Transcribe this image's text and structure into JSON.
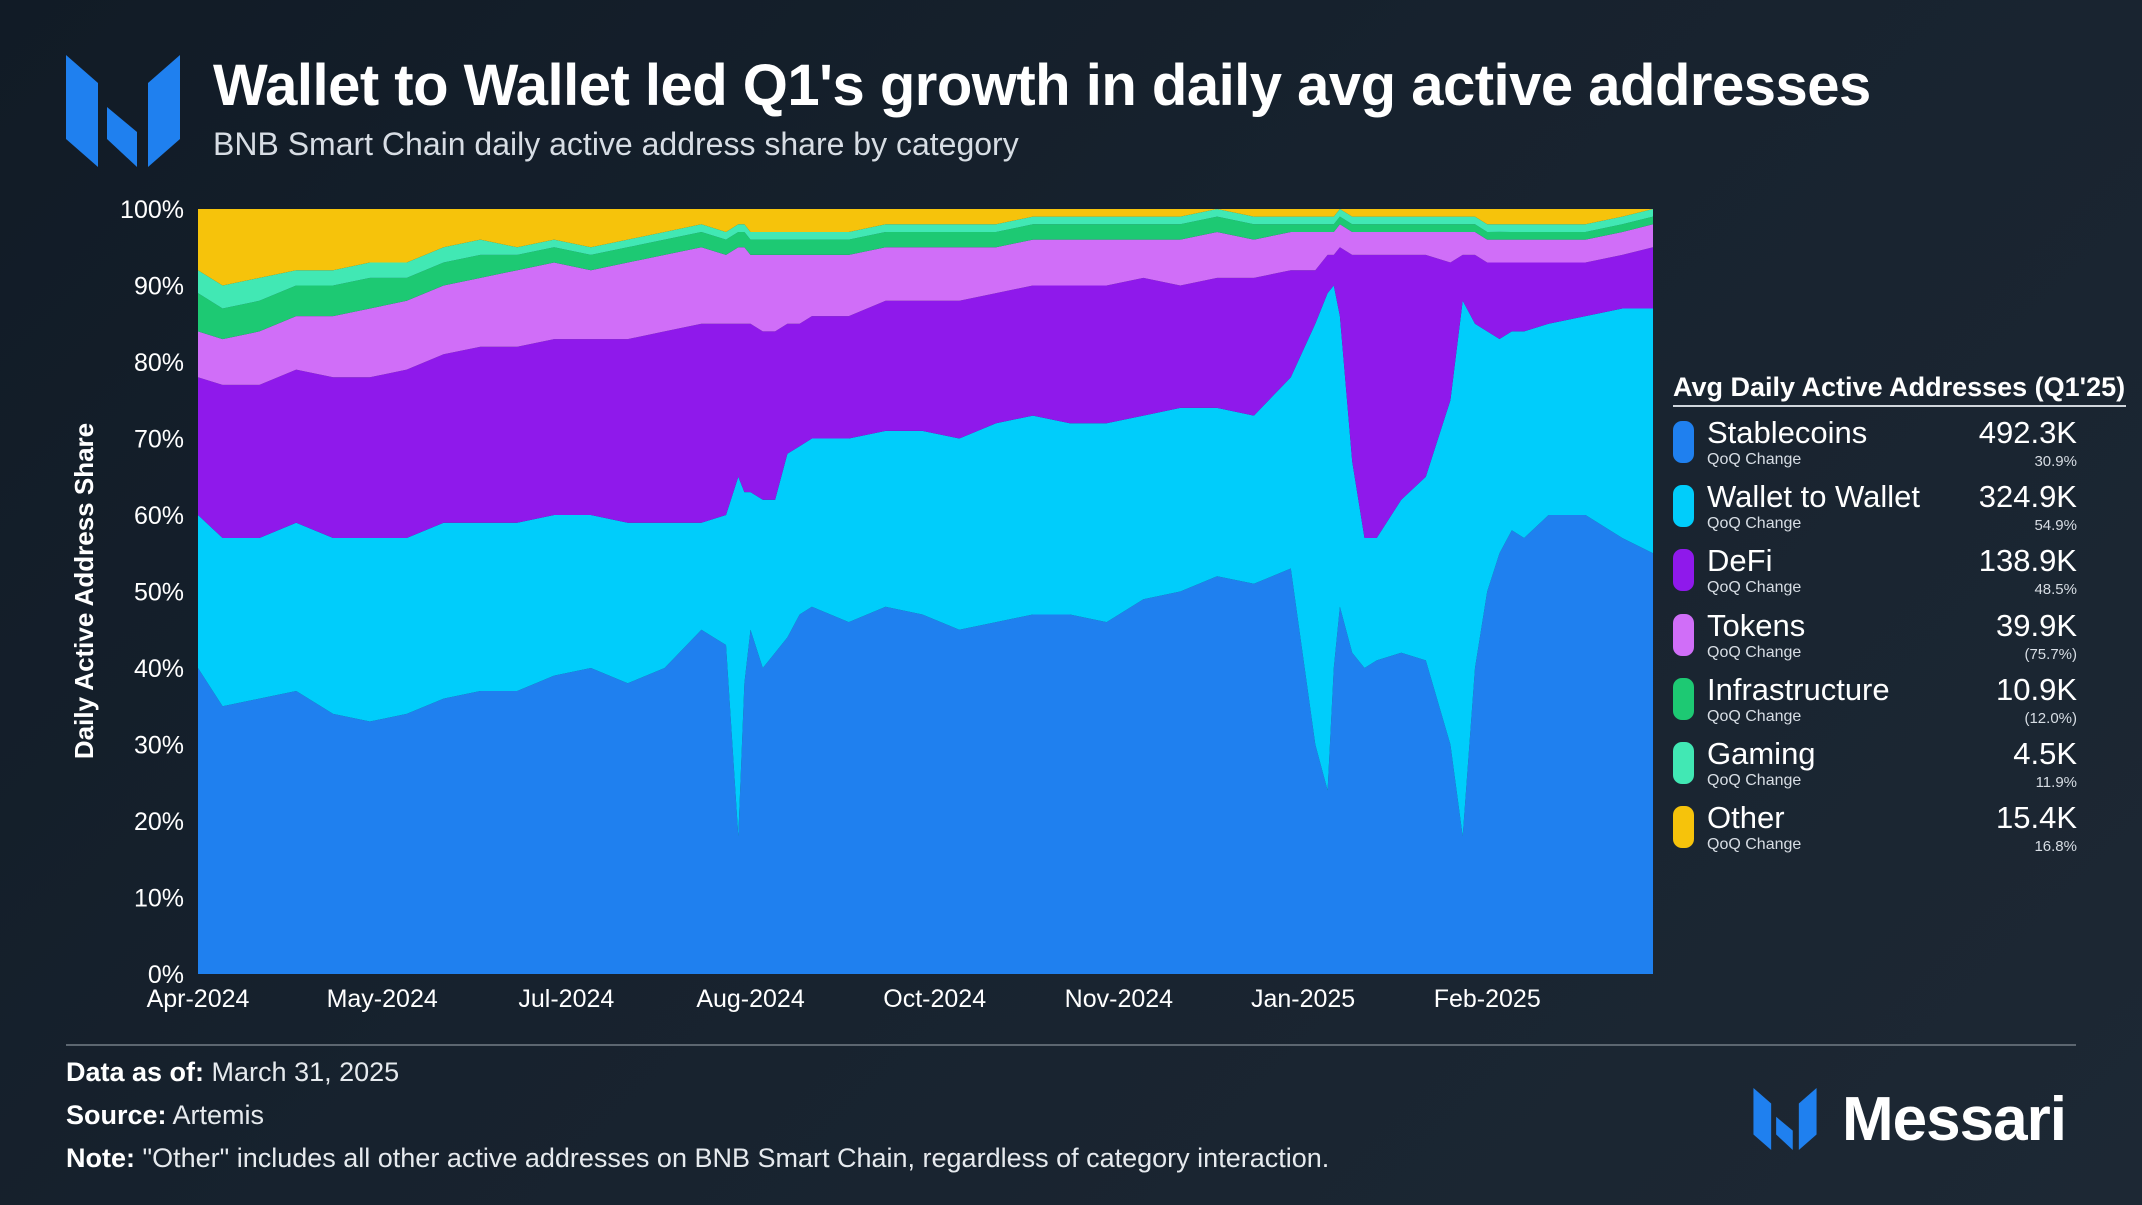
{
  "header": {
    "logo_icon": "messari-logo-icon",
    "title": "Wallet to Wallet led Q1's growth in daily avg active addresses",
    "subtitle": "BNB Smart Chain daily active address share by category"
  },
  "chart_data": {
    "type": "area",
    "stacked": true,
    "normalized": true,
    "title": "Wallet to Wallet led Q1's growth in daily avg active addresses",
    "subtitle": "BNB Smart Chain daily active address share by category",
    "xlabel": "",
    "ylabel": "Daily Active Address Share",
    "ylim": [
      0,
      100
    ],
    "y_ticks": [
      "0%",
      "10%",
      "20%",
      "30%",
      "40%",
      "50%",
      "60%",
      "70%",
      "80%",
      "90%",
      "100%"
    ],
    "x_ticks": [
      "Apr-2024",
      "May-2024",
      "Jul-2024",
      "Aug-2024",
      "Oct-2024",
      "Nov-2024",
      "Jan-2025",
      "Feb-2025"
    ],
    "x_tick_positions": [
      0,
      30,
      60,
      90,
      120,
      150,
      180,
      210
    ],
    "x_range": [
      0,
      237
    ],
    "x": [
      0,
      4,
      10,
      16,
      22,
      28,
      34,
      40,
      46,
      52,
      58,
      64,
      70,
      76,
      82,
      86,
      88,
      89,
      90,
      92,
      94,
      96,
      98,
      100,
      106,
      112,
      118,
      124,
      130,
      136,
      142,
      148,
      154,
      160,
      166,
      172,
      178,
      182,
      184,
      185,
      186,
      188,
      190,
      192,
      196,
      200,
      204,
      206,
      208,
      210,
      212,
      214,
      216,
      220,
      226,
      232,
      237
    ],
    "series": [
      {
        "name": "Stablecoins",
        "color": "#1f80ef",
        "values": [
          40,
          35,
          36,
          37,
          34,
          33,
          34,
          36,
          37,
          37,
          39,
          40,
          38,
          40,
          45,
          43,
          18,
          38,
          45,
          40,
          42,
          44,
          47,
          48,
          46,
          48,
          47,
          45,
          46,
          47,
          47,
          46,
          49,
          50,
          52,
          51,
          53,
          30,
          24,
          40,
          48,
          42,
          40,
          41,
          42,
          41,
          30,
          18,
          40,
          50,
          55,
          58,
          57,
          60,
          60,
          57,
          55
        ]
      },
      {
        "name": "Wallet to Wallet",
        "color": "#00cdfb",
        "values": [
          20,
          22,
          21,
          22,
          23,
          24,
          23,
          23,
          22,
          22,
          21,
          20,
          21,
          19,
          14,
          17,
          47,
          25,
          18,
          22,
          20,
          24,
          22,
          22,
          24,
          23,
          24,
          25,
          26,
          26,
          25,
          26,
          24,
          24,
          22,
          22,
          25,
          55,
          65,
          50,
          38,
          25,
          17,
          16,
          20,
          24,
          45,
          70,
          45,
          34,
          28,
          26,
          27,
          25,
          26,
          30,
          32
        ]
      },
      {
        "name": "DeFi",
        "color": "#8f19eb",
        "values": [
          18,
          20,
          20,
          20,
          21,
          21,
          22,
          22,
          23,
          23,
          23,
          23,
          24,
          25,
          26,
          25,
          20,
          22,
          22,
          22,
          22,
          17,
          16,
          16,
          16,
          17,
          17,
          18,
          17,
          17,
          18,
          18,
          18,
          16,
          17,
          18,
          14,
          7,
          5,
          4,
          9,
          27,
          37,
          37,
          32,
          29,
          18,
          6,
          9,
          9,
          10,
          9,
          9,
          8,
          7,
          7,
          8
        ]
      },
      {
        "name": "Tokens",
        "color": "#d06ef8",
        "values": [
          6,
          6,
          7,
          7,
          8,
          9,
          9,
          9,
          9,
          10,
          10,
          9,
          10,
          10,
          10,
          9,
          10,
          10,
          9,
          10,
          10,
          9,
          9,
          8,
          8,
          7,
          7,
          7,
          6,
          6,
          6,
          6,
          5,
          6,
          6,
          5,
          5,
          5,
          3,
          3,
          3,
          3,
          3,
          3,
          3,
          3,
          4,
          3,
          3,
          3,
          3,
          3,
          3,
          3,
          3,
          3,
          3
        ]
      },
      {
        "name": "Infrastructure",
        "color": "#1dc973",
        "values": [
          5,
          4,
          4,
          4,
          4,
          4,
          3,
          3,
          3,
          2,
          2,
          2,
          2,
          2,
          2,
          2,
          2,
          2,
          2,
          2,
          2,
          2,
          2,
          2,
          2,
          2,
          2,
          2,
          2,
          2,
          2,
          2,
          2,
          2,
          2,
          2,
          1,
          1,
          1,
          1,
          1,
          1,
          1,
          1,
          1,
          1,
          1,
          1,
          1,
          1,
          1,
          1,
          1,
          1,
          1,
          1,
          1
        ]
      },
      {
        "name": "Gaming",
        "color": "#41e8b4",
        "values": [
          3,
          3,
          3,
          2,
          2,
          2,
          2,
          2,
          2,
          1,
          1,
          1,
          1,
          1,
          1,
          1,
          1,
          1,
          1,
          1,
          1,
          1,
          1,
          1,
          1,
          1,
          1,
          1,
          1,
          1,
          1,
          1,
          1,
          1,
          1,
          1,
          1,
          1,
          1,
          1,
          1,
          1,
          1,
          1,
          1,
          1,
          1,
          1,
          1,
          1,
          1,
          1,
          1,
          1,
          1,
          1,
          1
        ]
      },
      {
        "name": "Other",
        "color": "#f6c30b",
        "values": [
          8,
          10,
          9,
          8,
          8,
          7,
          7,
          5,
          4,
          5,
          4,
          5,
          4,
          3,
          2,
          3,
          2,
          2,
          3,
          3,
          3,
          3,
          3,
          3,
          3,
          2,
          2,
          2,
          2,
          1,
          1,
          1,
          1,
          1,
          0,
          1,
          1,
          1,
          1,
          1,
          0,
          1,
          1,
          1,
          1,
          1,
          1,
          1,
          1,
          2,
          2,
          2,
          2,
          2,
          2,
          1,
          0
        ]
      }
    ],
    "legend_position": "right"
  },
  "legend": {
    "header": "Avg Daily Active Addresses (Q1'25)",
    "change_label": "QoQ Change",
    "items": [
      {
        "name": "Stablecoins",
        "value": "492.3K",
        "change": "30.9%",
        "color": "#1f80ef"
      },
      {
        "name": "Wallet to Wallet",
        "value": "324.9K",
        "change": "54.9%",
        "color": "#00cdfb"
      },
      {
        "name": "DeFi",
        "value": "138.9K",
        "change": "48.5%",
        "color": "#8f19eb"
      },
      {
        "name": "Tokens",
        "value": "39.9K",
        "change": "(75.7%)",
        "color": "#d06ef8"
      },
      {
        "name": "Infrastructure",
        "value": "10.9K",
        "change": "(12.0%)",
        "color": "#1dc973"
      },
      {
        "name": "Gaming",
        "value": "4.5K",
        "change": "11.9%",
        "color": "#41e8b4"
      },
      {
        "name": "Other",
        "value": "15.4K",
        "change": "16.8%",
        "color": "#f6c30b"
      }
    ]
  },
  "footer": {
    "data_as_of_label": "Data as of:",
    "data_as_of": " March 31, 2025",
    "source_label": "Source:",
    "source": " Artemis",
    "note_label": "Note:",
    "note": " \"Other\" includes all other active addresses on BNB Smart Chain, regardless of category interaction."
  },
  "brand": {
    "icon": "messari-logo-icon",
    "name": "Messari"
  }
}
